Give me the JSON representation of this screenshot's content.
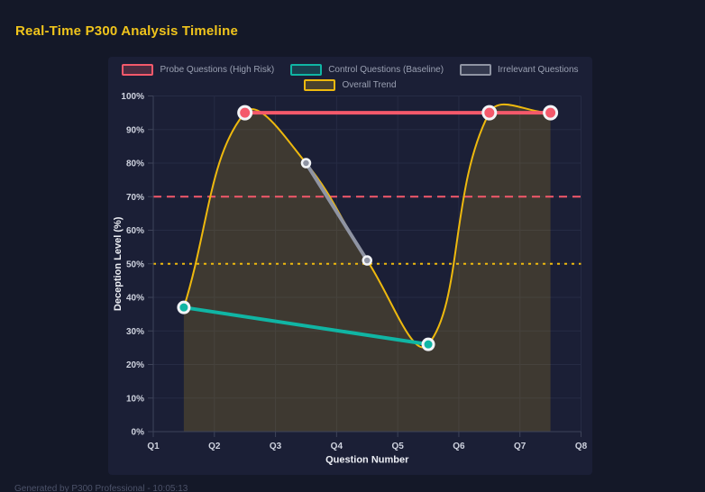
{
  "page": {
    "title": "Real-Time P300 Analysis Timeline",
    "footer": "Generated by P300 Professional - 10:05:13"
  },
  "colors": {
    "background": "#141828",
    "panel": "#1b1f36",
    "title": "#f0c41c",
    "grid": "#262b44",
    "axis": "#3d4359",
    "tick_label": "#cfd3df",
    "axis_title": "#eceef4",
    "legend_label": "#9aa0b2",
    "point_ring": "#f2f4f7"
  },
  "chart_data": {
    "type": "line",
    "title": "Real-Time P300 Analysis Timeline",
    "xlabel": "Question Number",
    "ylabel": "Deception Level (%)",
    "x_categories": [
      "Q1",
      "Q2",
      "Q3",
      "Q4",
      "Q5",
      "Q6",
      "Q7",
      "Q8"
    ],
    "y_ticks": [
      "0%",
      "10%",
      "20%",
      "30%",
      "40%",
      "50%",
      "60%",
      "70%",
      "80%",
      "90%",
      "100%"
    ],
    "xlim": [
      1,
      8
    ],
    "ylim": [
      0,
      100
    ],
    "grid": true,
    "legend_position": "top",
    "series": [
      {
        "key": "probe",
        "name": "Probe Questions (High Risk)",
        "color": "#f4596b",
        "line_width": 4,
        "point_radius": 7,
        "points": [
          {
            "x": 2.5,
            "y": 95
          },
          {
            "x": 6.5,
            "y": 95
          },
          {
            "x": 7.5,
            "y": 95
          }
        ]
      },
      {
        "key": "control",
        "name": "Control Questions (Baseline)",
        "color": "#10b5a4",
        "line_width": 4,
        "point_radius": 6,
        "points": [
          {
            "x": 1.5,
            "y": 37
          },
          {
            "x": 5.5,
            "y": 26
          }
        ]
      },
      {
        "key": "irrelevant",
        "name": "Irrelevant Questions",
        "color": "#8f94a3",
        "line_width": 4,
        "point_radius": 4.5,
        "points": [
          {
            "x": 3.5,
            "y": 80
          },
          {
            "x": 4.5,
            "y": 51
          }
        ]
      },
      {
        "key": "trend",
        "name": "Overall Trend",
        "color": "#eeb90e",
        "line_width": 2,
        "point_radius": 0,
        "smooth": true,
        "fill": "rgba(238,190,30,0.17)",
        "points": [
          {
            "x": 1.5,
            "y": 37
          },
          {
            "x": 2.5,
            "y": 95
          },
          {
            "x": 3.5,
            "y": 80
          },
          {
            "x": 4.5,
            "y": 51
          },
          {
            "x": 5.5,
            "y": 26
          },
          {
            "x": 6.5,
            "y": 95
          },
          {
            "x": 7.5,
            "y": 95
          }
        ]
      }
    ],
    "reference_lines": [
      {
        "key": "probe-threshold",
        "y": 70,
        "color": "#f4596b",
        "dash": "9 6"
      },
      {
        "key": "control-threshold",
        "y": 50,
        "color": "#eeb90e",
        "dash": "3 5"
      }
    ]
  }
}
